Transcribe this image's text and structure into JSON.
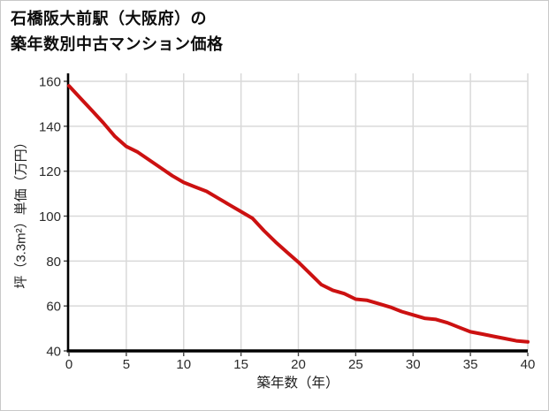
{
  "title": {
    "line1": "石橋阪大前駅（大阪府）の",
    "line2": "築年数別中古マンション価格"
  },
  "chart_data": {
    "type": "line",
    "title": "石橋阪大前駅（大阪府）の築年数別中古マンション価格",
    "xlabel": "築年数（年）",
    "ylabel": "坪（3.3m²）単価（万円）",
    "x": [
      0,
      1,
      2,
      3,
      4,
      5,
      6,
      7,
      8,
      9,
      10,
      11,
      12,
      13,
      14,
      15,
      16,
      17,
      18,
      19,
      20,
      21,
      22,
      23,
      24,
      25,
      26,
      27,
      28,
      29,
      30,
      31,
      32,
      33,
      34,
      35,
      36,
      37,
      38,
      39,
      40
    ],
    "values": [
      158,
      152.5,
      147,
      141.5,
      135.5,
      131,
      128.5,
      125,
      121.5,
      118,
      115,
      113,
      111,
      108,
      105,
      102,
      99,
      93.5,
      88.5,
      84,
      79.5,
      74.5,
      69.5,
      67,
      65.5,
      63,
      62.5,
      61,
      59.5,
      57.5,
      56,
      54.5,
      54,
      52.5,
      50.5,
      48.5,
      47.5,
      46.5,
      45.5,
      44.5,
      44
    ],
    "xlim": [
      0,
      40
    ],
    "ylim": [
      40,
      160
    ],
    "xticks": [
      0,
      5,
      10,
      15,
      20,
      25,
      30,
      35,
      40
    ],
    "yticks": [
      40,
      60,
      80,
      100,
      120,
      140,
      160
    ],
    "grid": true,
    "legend": "none",
    "line_color": "#cc1111",
    "grid_color": "#d9d9d9",
    "spine_color": "#000000",
    "tick_color": "#444444"
  }
}
